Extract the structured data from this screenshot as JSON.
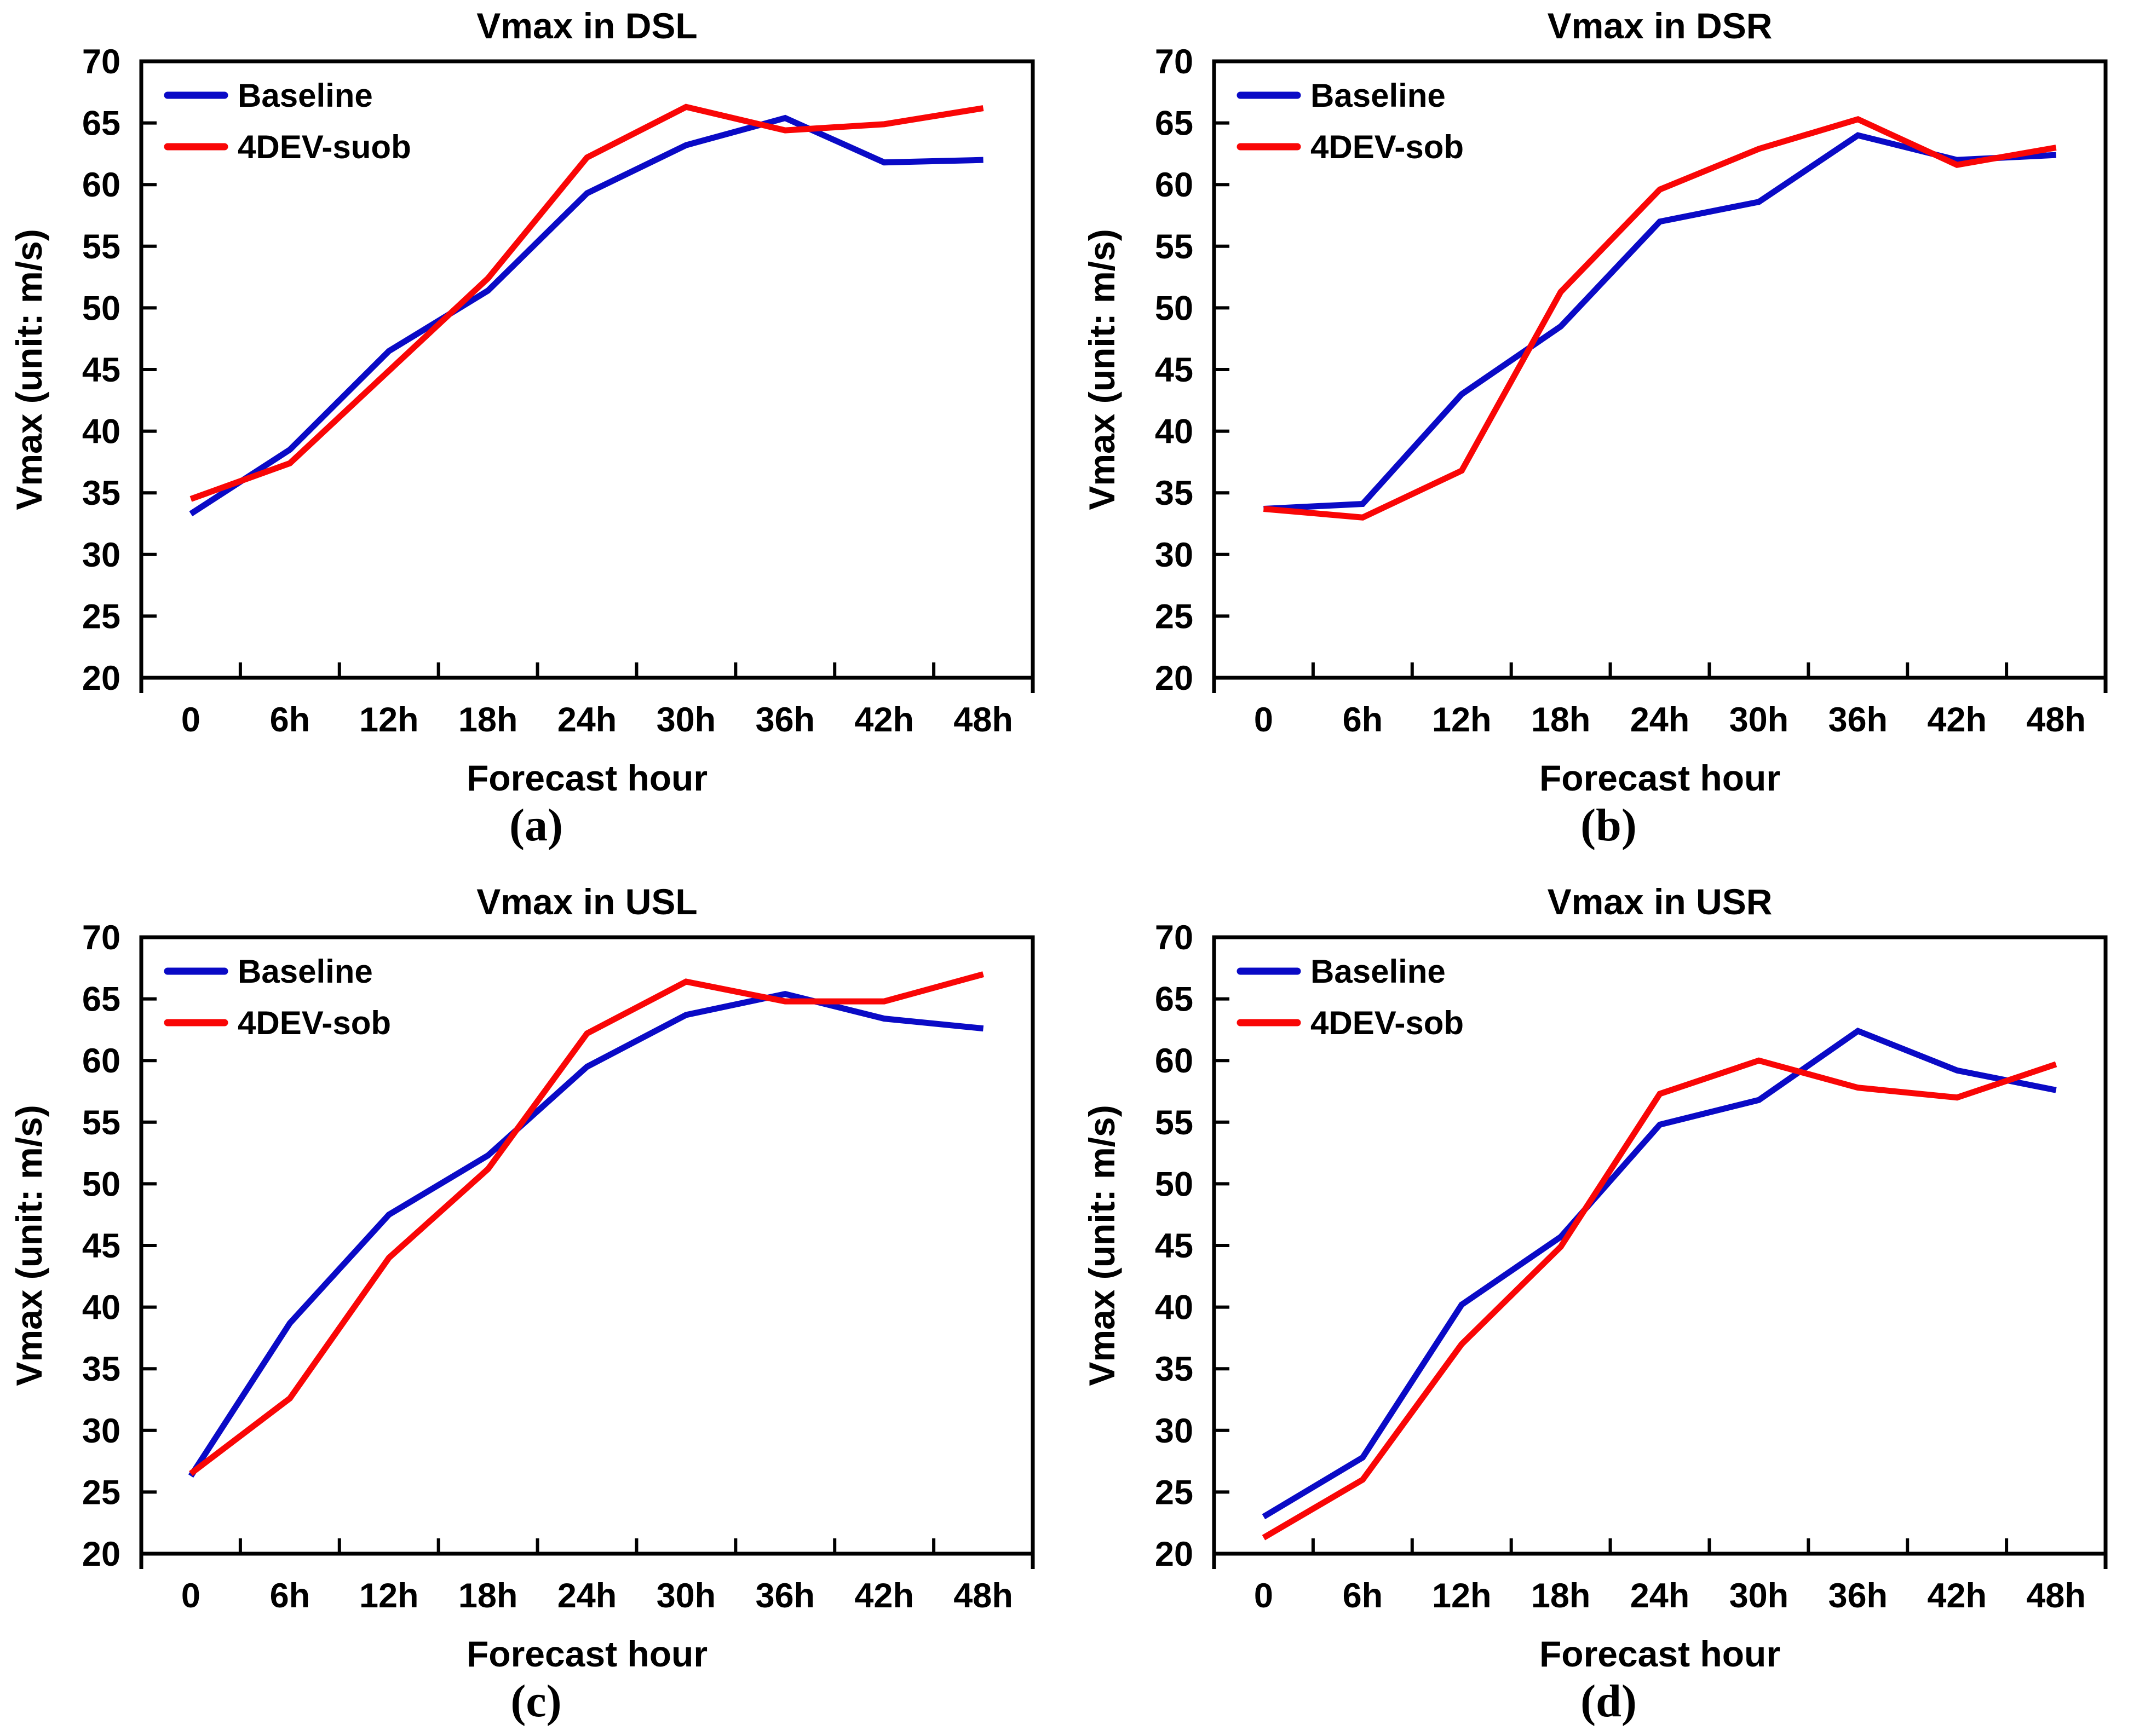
{
  "colors": {
    "baseline_line": "#0a0ac6",
    "variant_line": "#f90606",
    "axis": "#000000",
    "background": "#ffffff"
  },
  "chart_data": [
    {
      "type": "line",
      "title": "Vmax in DSL",
      "caption": "(a)",
      "xlabel": "Forecast hour",
      "ylabel": "Vmax (unit: m/s)",
      "ylim": [
        20,
        70
      ],
      "ytick_step": 5,
      "grid": false,
      "legend_position": "top-left",
      "categories": [
        "0",
        "6h",
        "12h",
        "18h",
        "24h",
        "30h",
        "36h",
        "42h",
        "48h"
      ],
      "series": [
        {
          "name": "Baseline",
          "color": "#0a0ac6",
          "values": [
            33.3,
            38.5,
            46.5,
            51.4,
            59.3,
            63.2,
            65.4,
            61.8,
            62.0
          ]
        },
        {
          "name": "4DEV-suob",
          "color": "#f90606",
          "values": [
            34.5,
            37.4,
            44.9,
            52.4,
            62.2,
            66.3,
            64.4,
            64.9,
            66.2
          ]
        }
      ]
    },
    {
      "type": "line",
      "title": "Vmax in DSR",
      "caption": "(b)",
      "xlabel": "Forecast hour",
      "ylabel": "Vmax (unit: m/s)",
      "ylim": [
        20,
        70
      ],
      "ytick_step": 5,
      "grid": false,
      "legend_position": "top-left",
      "categories": [
        "0",
        "6h",
        "12h",
        "18h",
        "24h",
        "30h",
        "36h",
        "42h",
        "48h"
      ],
      "series": [
        {
          "name": "Baseline",
          "color": "#0a0ac6",
          "values": [
            33.7,
            34.1,
            43.0,
            48.5,
            57.0,
            58.6,
            64.0,
            62.0,
            62.4
          ]
        },
        {
          "name": "4DEV-sob",
          "color": "#f90606",
          "values": [
            33.7,
            33.0,
            36.8,
            51.3,
            59.6,
            62.9,
            65.3,
            61.6,
            63.0
          ]
        }
      ]
    },
    {
      "type": "line",
      "title": "Vmax in USL",
      "caption": "(c)",
      "xlabel": "Forecast hour",
      "ylabel": "Vmax (unit: m/s)",
      "ylim": [
        20,
        70
      ],
      "ytick_step": 5,
      "grid": false,
      "legend_position": "top-left",
      "categories": [
        "0",
        "6h",
        "12h",
        "18h",
        "24h",
        "30h",
        "36h",
        "42h",
        "48h"
      ],
      "series": [
        {
          "name": "Baseline",
          "color": "#0a0ac6",
          "values": [
            26.3,
            38.7,
            47.5,
            52.3,
            59.5,
            63.7,
            65.4,
            63.4,
            62.6
          ]
        },
        {
          "name": "4DEV-sob",
          "color": "#f90606",
          "values": [
            26.5,
            32.6,
            44.0,
            51.2,
            62.2,
            66.4,
            64.8,
            64.8,
            67.0
          ]
        }
      ]
    },
    {
      "type": "line",
      "title": "Vmax in USR",
      "caption": "(d)",
      "xlabel": "Forecast hour",
      "ylabel": "Vmax (unit: m/s)",
      "ylim": [
        20,
        70
      ],
      "ytick_step": 5,
      "grid": false,
      "legend_position": "top-left",
      "categories": [
        "0",
        "6h",
        "12h",
        "18h",
        "24h",
        "30h",
        "36h",
        "42h",
        "48h"
      ],
      "series": [
        {
          "name": "Baseline",
          "color": "#0a0ac6",
          "values": [
            23.0,
            27.8,
            40.2,
            45.7,
            54.8,
            56.8,
            62.4,
            59.2,
            57.6
          ]
        },
        {
          "name": "4DEV-sob",
          "color": "#f90606",
          "values": [
            21.3,
            26.0,
            37.0,
            44.9,
            57.3,
            60.0,
            57.8,
            57.0,
            59.7
          ]
        }
      ]
    }
  ]
}
